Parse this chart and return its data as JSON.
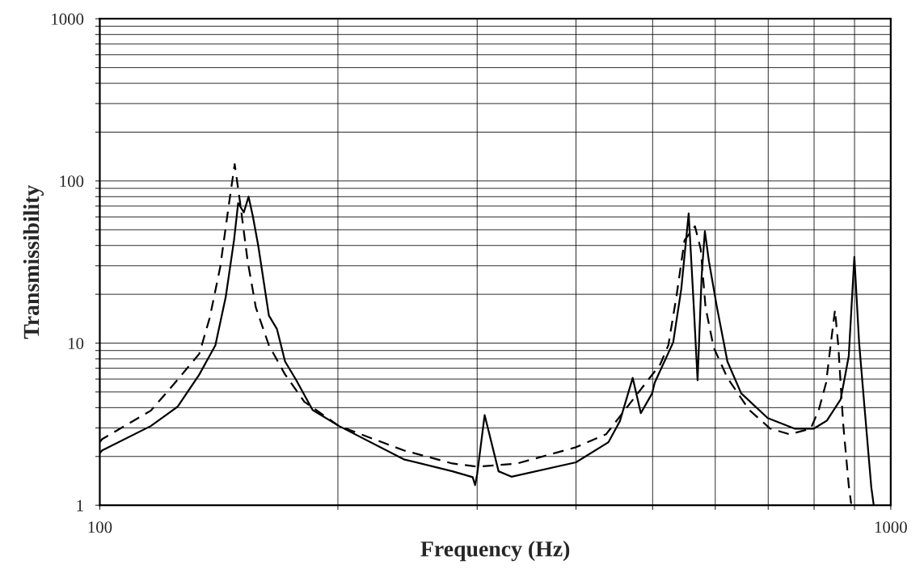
{
  "chart_data": {
    "type": "line",
    "xlabel": "Frequency (Hz)",
    "ylabel": "Transmissibility",
    "log": "xy",
    "grid": true,
    "marker": "none",
    "xlim": [
      100,
      1000
    ],
    "ylim": [
      1,
      1000
    ],
    "xticks": [
      100,
      {
        "value": 200,
        "label": null
      },
      {
        "value": 300,
        "label": null
      },
      {
        "value": 400,
        "label": null
      },
      {
        "value": 500,
        "label": null
      },
      {
        "value": 600,
        "label": null
      },
      {
        "value": 700,
        "label": null
      },
      {
        "value": 800,
        "label": null
      },
      {
        "value": 900,
        "label": null
      },
      1000
    ],
    "yticks": [
      1,
      {
        "value": 2,
        "label": null
      },
      {
        "value": 3,
        "label": null
      },
      {
        "value": 4,
        "label": null
      },
      {
        "value": 5,
        "label": null
      },
      {
        "value": 6,
        "label": null
      },
      {
        "value": 7,
        "label": null
      },
      {
        "value": 8,
        "label": null
      },
      {
        "value": 9,
        "label": null
      },
      10,
      {
        "value": 20,
        "label": null
      },
      {
        "value": 30,
        "label": null
      },
      {
        "value": 40,
        "label": null
      },
      {
        "value": 50,
        "label": null
      },
      {
        "value": 60,
        "label": null
      },
      {
        "value": 70,
        "label": null
      },
      {
        "value": 80,
        "label": null
      },
      {
        "value": 90,
        "label": null
      },
      100,
      {
        "value": 200,
        "label": null
      },
      {
        "value": 300,
        "label": null
      },
      {
        "value": 400,
        "label": null
      },
      {
        "value": 500,
        "label": null
      },
      {
        "value": 600,
        "label": null
      },
      {
        "value": 700,
        "label": null
      },
      {
        "value": 800,
        "label": null
      },
      {
        "value": 900,
        "label": null
      },
      1000
    ],
    "series": [
      {
        "color": "#000000",
        "line_style": "solid",
        "x": [
          100,
          100.7,
          116,
          125.4,
          133.6,
          140,
          144.3,
          147.8,
          149.6,
          152.1,
          154.2,
          156.1,
          158.6,
          163.6,
          167.5,
          171.5,
          177.2,
          185.8,
          200.7,
          242.3,
          279.2,
          296.1,
          298.2,
          300,
          306.6,
          319.3,
          331.5,
          400,
          439.7,
          454.5,
          471.8,
          483.1,
          499.3,
          503,
          530.8,
          543.5,
          555.3,
          563.2,
          569.9,
          576.7,
          582.1,
          589,
          603,
          621.6,
          647,
          699,
          755.6,
          799.6,
          830.4,
          864.4,
          884.9,
          899.5,
          912,
          927,
          945,
          951.7
        ],
        "values": [
          2.1,
          2.18,
          3.08,
          4.05,
          6.4,
          9.7,
          19.3,
          43,
          73,
          64,
          80,
          61,
          40,
          14.8,
          12.2,
          7.7,
          5.9,
          3.87,
          3.08,
          1.92,
          1.62,
          1.49,
          1.33,
          1.55,
          3.6,
          1.62,
          1.5,
          1.84,
          2.45,
          3.3,
          6.1,
          3.7,
          4.9,
          5.7,
          10.1,
          21.6,
          63,
          18,
          5.9,
          26,
          49,
          32,
          16.6,
          7.7,
          4.9,
          3.45,
          2.97,
          2.97,
          3.33,
          4.5,
          8.3,
          34,
          10.1,
          3.9,
          1.29,
          1
        ]
      },
      {
        "color": "#000000",
        "line_style": "dashed",
        "x": [
          100,
          100.7,
          116,
          124.5,
          133.6,
          137.7,
          142,
          145.4,
          148.1,
          150.6,
          153.8,
          157.5,
          163.6,
          171.5,
          181.4,
          200.7,
          242.3,
          279.2,
          300,
          337.1,
          400,
          436.6,
          511.2,
          523.4,
          535.8,
          548.6,
          565.6,
          575.1,
          583.3,
          597.2,
          621.6,
          662.4,
          704,
          745.3,
          792.1,
          811,
          828.5,
          840.3,
          850.2,
          858.3,
          870.6,
          884.9,
          891.2
        ],
        "values": [
          2.45,
          2.56,
          3.83,
          5.7,
          8.6,
          14.3,
          29.5,
          68,
          127,
          71,
          32,
          16.6,
          9.7,
          6.4,
          4.35,
          3.08,
          2.18,
          1.81,
          1.73,
          1.81,
          2.28,
          2.74,
          7.4,
          9.7,
          19.3,
          43,
          52.5,
          38,
          16.6,
          9.4,
          6.1,
          3.87,
          2.97,
          2.74,
          2.97,
          3.87,
          5.7,
          10.1,
          16,
          9.7,
          3.2,
          1.33,
          1.02
        ]
      }
    ]
  }
}
